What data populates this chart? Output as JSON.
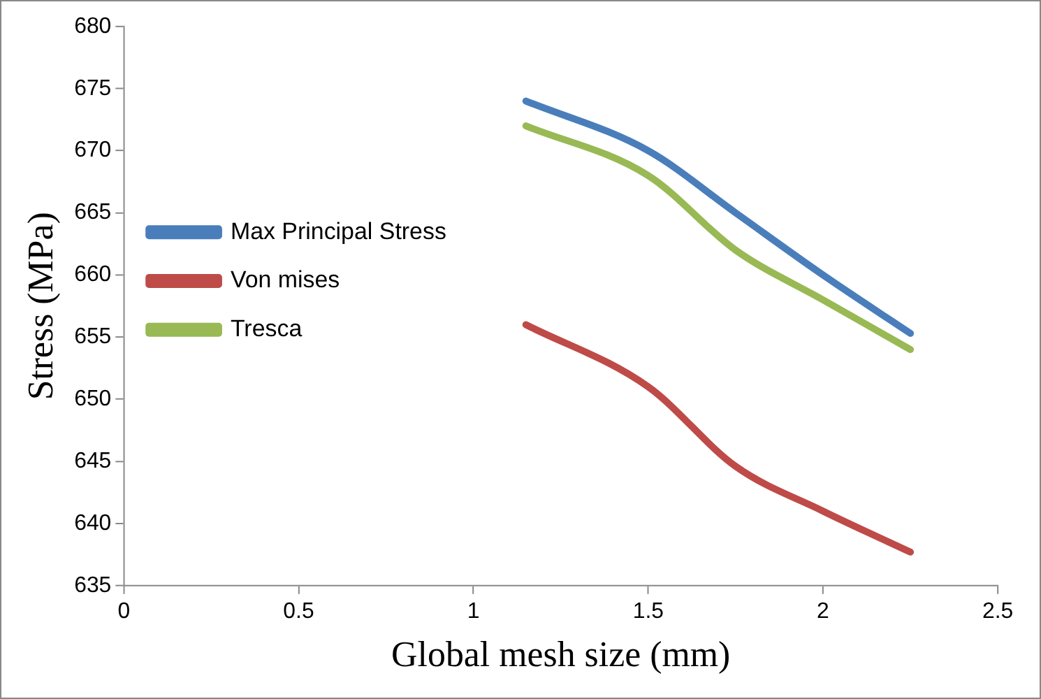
{
  "chart_data": {
    "type": "line",
    "xlabel": "Global mesh size (mm)",
    "ylabel": "Stress (MPa)",
    "x": [
      1.15,
      1.5,
      1.75,
      2,
      2.25
    ],
    "series": [
      {
        "name": "Max Principal Stress",
        "color": "#4a7ebb",
        "values": [
          674,
          670,
          665,
          660,
          655.3
        ]
      },
      {
        "name": "Von mises",
        "color": "#be4b48",
        "values": [
          656,
          651,
          644.6,
          641,
          637.7
        ]
      },
      {
        "name": "Tresca",
        "color": "#98b954",
        "values": [
          672,
          668,
          662,
          658,
          654
        ]
      }
    ],
    "xlim": [
      0,
      2.5
    ],
    "xticks": [
      0,
      0.5,
      1,
      1.5,
      2,
      2.5
    ],
    "ylim": [
      635,
      680
    ],
    "yticks": [
      635,
      640,
      645,
      650,
      655,
      660,
      665,
      670,
      675,
      680
    ],
    "grid": false,
    "legend": "left",
    "marker": "none",
    "line_style": "solid"
  }
}
